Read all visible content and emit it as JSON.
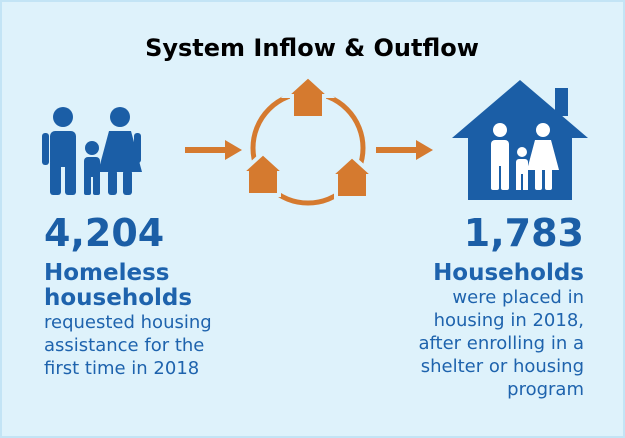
{
  "title": "System Inflow & Outflow",
  "inflow": {
    "number": "4,204",
    "label_lines": [
      "Homeless",
      "households"
    ],
    "description_lines": [
      "requested housing",
      "assistance for the",
      "first time in 2018"
    ]
  },
  "outflow": {
    "number": "1,783",
    "label_lines": [
      "Households"
    ],
    "description_lines": [
      "were placed in",
      "housing in 2018,",
      "after enrolling in a",
      "shelter or housing",
      "program"
    ]
  }
}
